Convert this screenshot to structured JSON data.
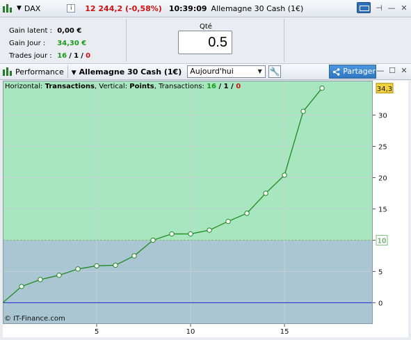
{
  "titlebar": {
    "symbol": "DAX",
    "info": "i",
    "quote": "12 244,2 (-0,58%)",
    "time": "10:39:09",
    "instrument": "Allemagne 30 Cash (1€)",
    "pin": "⊣",
    "minimize": "—",
    "close": "✕"
  },
  "stats": {
    "latent_label": "Gain latent :",
    "latent_value": "0,00 €",
    "jour_label": "Gain Jour :",
    "jour_value": "34,30 €",
    "trades_label": "Trades jour :",
    "trades_win": "16",
    "trades_sep": "/",
    "trades_neutral": "1",
    "trades_loss": "0"
  },
  "qty": {
    "label": "Qté",
    "value": "0.5"
  },
  "toolbar": {
    "performance_label": "Performance",
    "instrument": "Allemagne 30 Cash (1€)",
    "period": "Aujourd'hui",
    "share_label": "Partager",
    "minimize": "—",
    "maximize": "☐",
    "close": "✕"
  },
  "chart_header": {
    "h_label": "Horizontal: ",
    "h_value": "Transactions",
    "v_label": ", Vertical: ",
    "v_value": "Points",
    "t_label": ", Transactions: ",
    "t_win": "16",
    "t_sep": " / ",
    "t_neutral": "1",
    "t_loss": "0"
  },
  "watermark": "© IT-Finance.com",
  "colors": {
    "profit_zone": "#a8e6c0",
    "loss_zone": "#a9c6d2",
    "line": "#1f8a1f",
    "zero_line": "#2222cc",
    "last_label_bg": "#f3d33a"
  },
  "chart_data": {
    "type": "line",
    "x": [
      0,
      1,
      2,
      3,
      4,
      5,
      6,
      7,
      8,
      9,
      10,
      11,
      12,
      13,
      14,
      15,
      16,
      17
    ],
    "values": [
      0,
      2.6,
      3.7,
      4.4,
      5.4,
      5.9,
      6.0,
      7.5,
      10.0,
      11.0,
      11.0,
      11.6,
      13.0,
      14.3,
      17.5,
      20.4,
      30.6,
      34.3
    ],
    "xticks": [
      5,
      10,
      15
    ],
    "yticks": [
      0,
      5,
      10,
      15,
      20,
      25,
      30
    ],
    "xlim": [
      0,
      19.7
    ],
    "ylim": [
      -3.4,
      35.5
    ],
    "ref_line": 10,
    "ref_label": "10",
    "last_label": "34,3",
    "title": "",
    "xlabel": "",
    "ylabel": ""
  }
}
